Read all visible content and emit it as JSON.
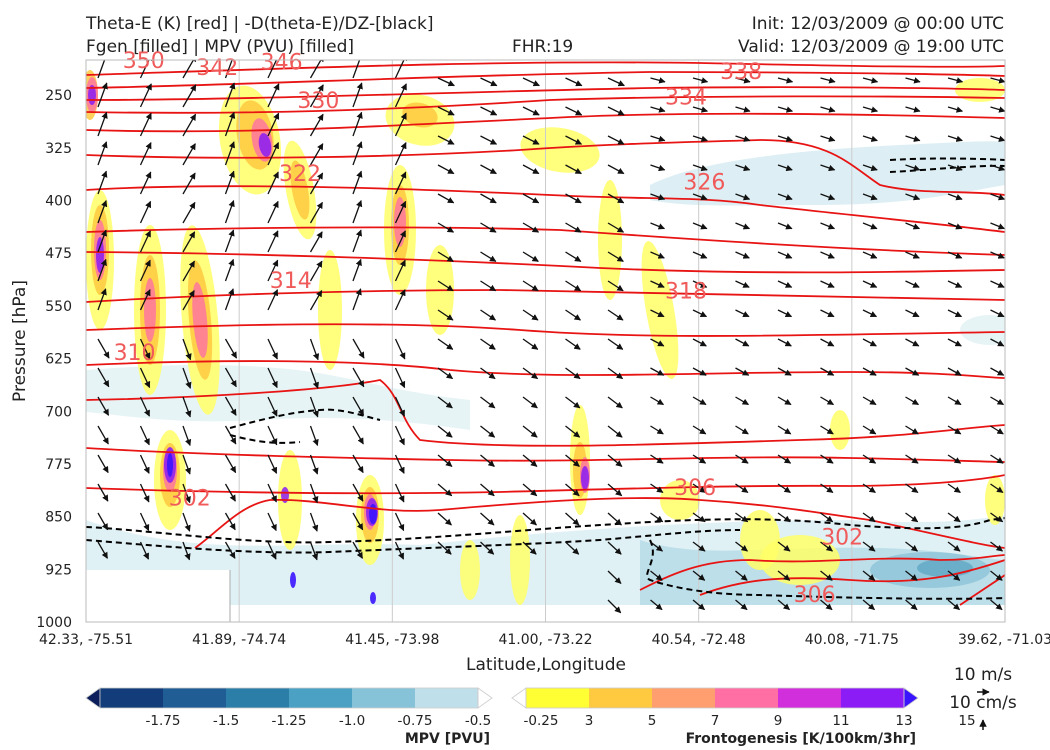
{
  "header": {
    "title_left_1": "Theta-E (K) [red] | -D(theta-E)/DZ-[black]",
    "title_left_2": "Fgen [filled] | MPV (PVU) [filled]",
    "title_center": "FHR:19",
    "title_right_1": "Init: 12/03/2009 @ 00:00 UTC",
    "title_right_2": "Valid: 12/03/2009 @ 19:00 UTC"
  },
  "chart_data": {
    "type": "cross-section",
    "xlabel": "Latitude,Longitude",
    "ylabel": "Pressure [hPa]",
    "x_ticks": [
      "42.33, -75.51",
      "41.89, -74.74",
      "41.45, -73.98",
      "41.00, -73.22",
      "40.54, -72.48",
      "40.08, -71.75",
      "39.62, -71.03"
    ],
    "y_ticks": [
      250,
      325,
      400,
      475,
      550,
      625,
      700,
      775,
      850,
      925,
      1000
    ],
    "ylim": [
      1000,
      200
    ],
    "y_inverted": true,
    "grid": true,
    "theta_e_contour_labels": [
      {
        "label": "350",
        "x": 0.04,
        "p": 200
      },
      {
        "label": "342",
        "x": 0.12,
        "p": 210
      },
      {
        "label": "346",
        "x": 0.19,
        "p": 202
      },
      {
        "label": "338",
        "x": 0.69,
        "p": 216
      },
      {
        "label": "334",
        "x": 0.63,
        "p": 252
      },
      {
        "label": "330",
        "x": 0.23,
        "p": 257
      },
      {
        "label": "326",
        "x": 0.65,
        "p": 373
      },
      {
        "label": "322",
        "x": 0.21,
        "p": 361
      },
      {
        "label": "318",
        "x": 0.63,
        "p": 528
      },
      {
        "label": "314",
        "x": 0.2,
        "p": 513
      },
      {
        "label": "310",
        "x": 0.03,
        "p": 616
      },
      {
        "label": "306",
        "x": 0.64,
        "p": 808
      },
      {
        "label": "302",
        "x": 0.09,
        "p": 823
      },
      {
        "label": "302",
        "x": 0.8,
        "p": 878
      },
      {
        "label": "306",
        "x": 0.77,
        "p": 960
      }
    ],
    "colorbars": [
      {
        "label": "MPV [PVU]",
        "ticks": [
          "-1.75",
          "-1.5",
          "-1.25",
          "-1.0",
          "-0.75",
          "-0.5",
          "-0.25"
        ],
        "colors": [
          "#0b1d5b",
          "#133d7a",
          "#1f5d94",
          "#2a7ea8",
          "#4ba1c3",
          "#86c3d9",
          "#bfe0ea",
          "#ffffff"
        ]
      },
      {
        "label": "Frontogenesis [K/100km/3hr]",
        "ticks": [
          "3",
          "5",
          "7",
          "9",
          "11",
          "13",
          "15"
        ],
        "colors": [
          "#ffffff",
          "#ffff33",
          "#ffc940",
          "#ff9f70",
          "#ff6fa3",
          "#d22fdc",
          "#8b1cf5",
          "#3a14ff"
        ]
      }
    ],
    "wind_key": {
      "label_top": "10 m/s",
      "label_bottom": "10 cm/s"
    }
  }
}
